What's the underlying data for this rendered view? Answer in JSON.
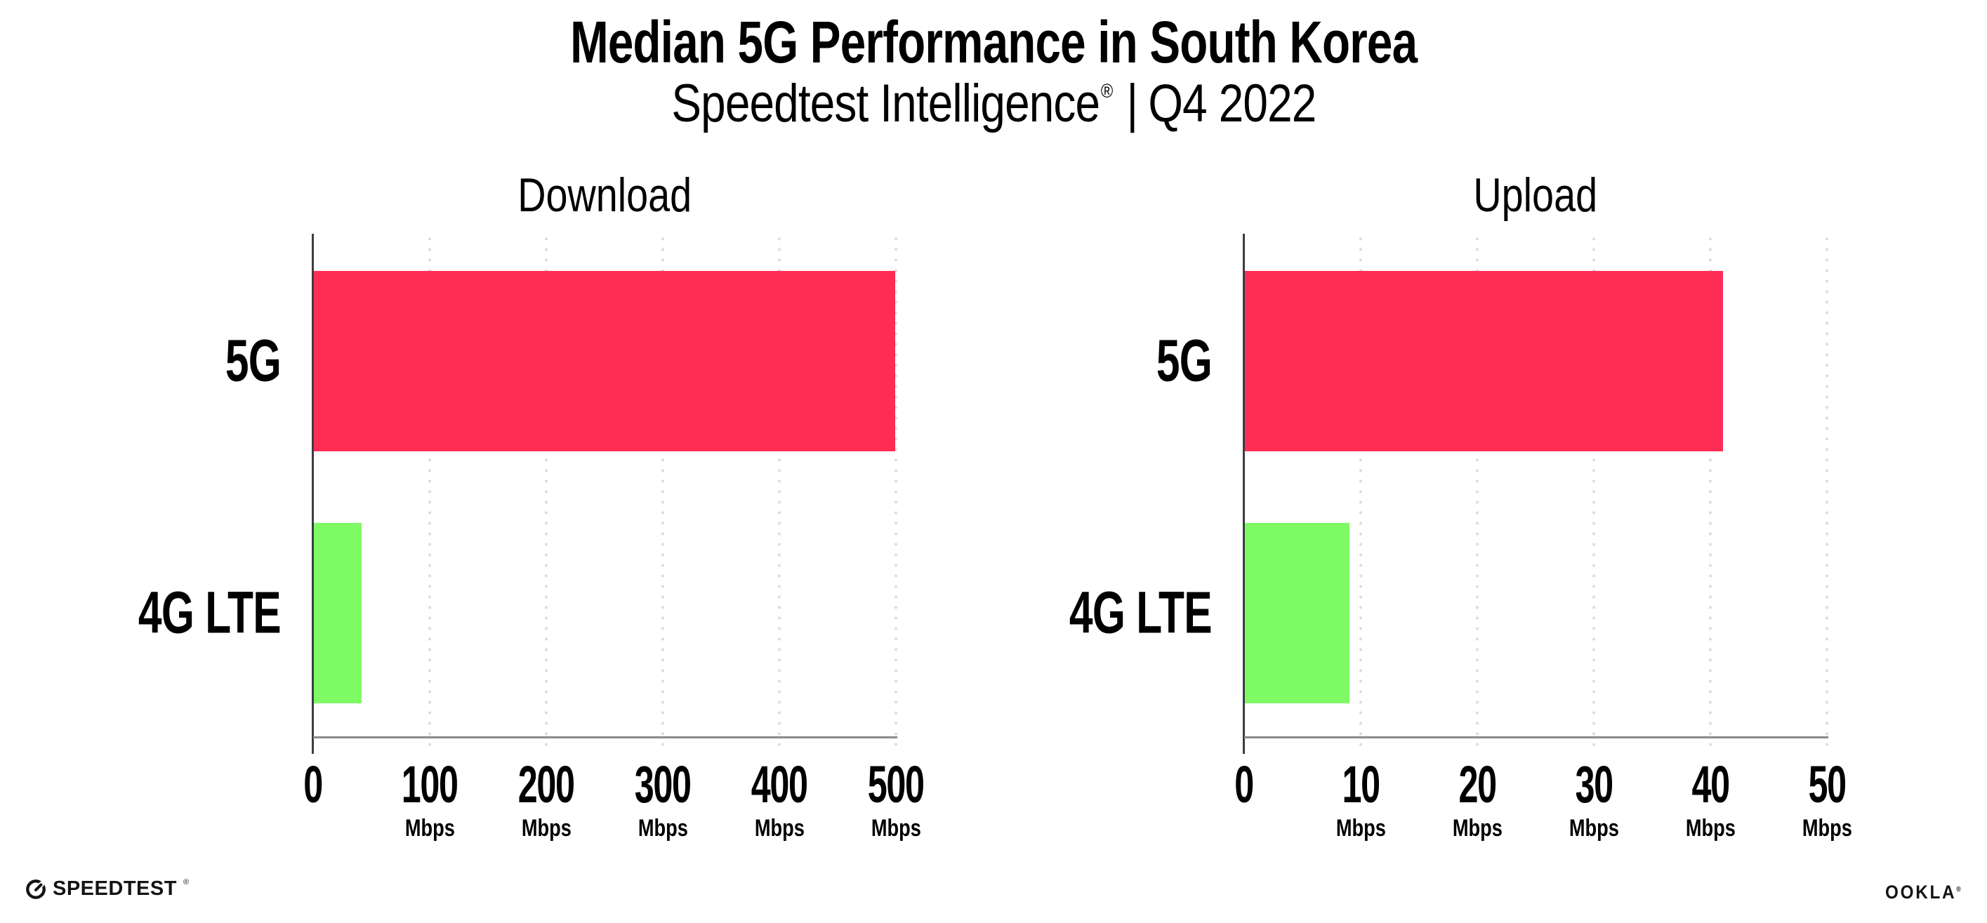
{
  "header": {
    "title": "Median 5G Performance in South Korea",
    "subtitle_product": "Speedtest Intelligence",
    "subtitle_reg": "®",
    "subtitle_separator": "|",
    "subtitle_period": "Q4 2022"
  },
  "chart_data": [
    {
      "type": "bar",
      "orientation": "horizontal",
      "title": "Download",
      "categories": [
        "5G",
        "4G LTE"
      ],
      "values": [
        499,
        41
      ],
      "unit": "Mbps",
      "xlim": [
        0,
        500
      ],
      "xtick_labels": [
        "0",
        "100",
        "200",
        "300",
        "400",
        "500"
      ],
      "colors": [
        "#FF2D55",
        "#7EFA64"
      ],
      "grid": "dotted-vertical",
      "legend": "none"
    },
    {
      "type": "bar",
      "orientation": "horizontal",
      "title": "Upload",
      "categories": [
        "5G",
        "4G LTE"
      ],
      "values": [
        41,
        9
      ],
      "unit": "Mbps",
      "xlim": [
        0,
        50
      ],
      "xtick_labels": [
        "0",
        "10",
        "20",
        "30",
        "40",
        "50"
      ],
      "colors": [
        "#FF2D55",
        "#7EFA64"
      ],
      "grid": "dotted-vertical",
      "legend": "none"
    }
  ],
  "footer": {
    "speedtest_label": "SPEEDTEST",
    "speedtest_reg": "®",
    "ookla_label": "OOKLA",
    "ookla_reg": "®"
  },
  "colors": {
    "bar_5g": "#FF2D55",
    "bar_4g_lte": "#7EFA64",
    "grid_dot": "#DCDCE4",
    "y_axis": "#3C3C42",
    "x_axis": "#8A8A8A",
    "text": "#000000"
  }
}
